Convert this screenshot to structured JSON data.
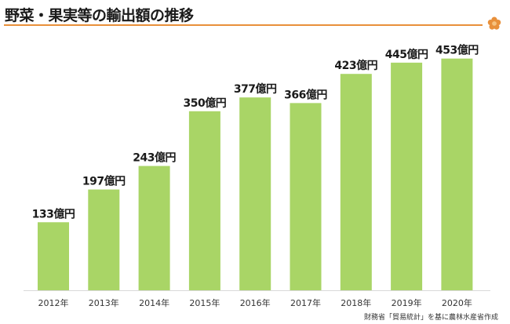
{
  "header": {
    "title": "野菜・果実等の輸出額の推移",
    "accent_color": "#e8903a",
    "logo_icon": "flower-icon"
  },
  "footer": {
    "source": "財務省「貿易統計」を基に農林水産省作成"
  },
  "chart_data": {
    "type": "bar",
    "title": "",
    "xlabel": "",
    "ylabel": "",
    "categories": [
      "2012年",
      "2013年",
      "2014年",
      "2015年",
      "2016年",
      "2017年",
      "2018年",
      "2019年",
      "2020年"
    ],
    "values": [
      133,
      197,
      243,
      350,
      377,
      366,
      423,
      445,
      453
    ],
    "data_labels": [
      "133億円",
      "197億円",
      "243億円",
      "350億円",
      "377億円",
      "366億円",
      "423億円",
      "445億円",
      "453億円"
    ],
    "bar_color": "#a9d566",
    "ylim": [
      0,
      500
    ],
    "grid": false,
    "legend": "none"
  }
}
